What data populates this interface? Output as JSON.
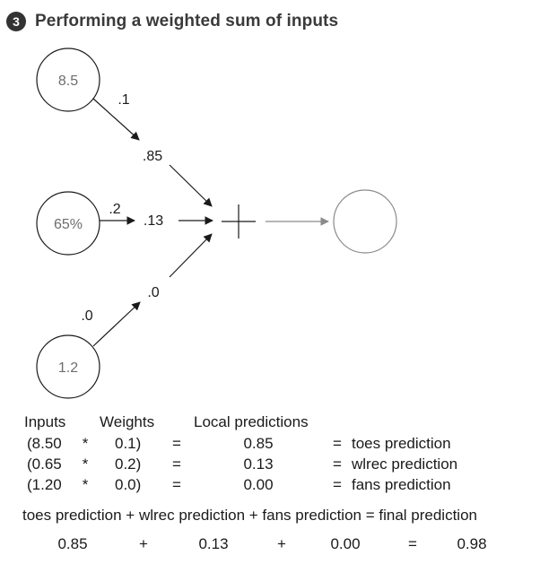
{
  "header": {
    "step_number": "3",
    "title": "Performing a weighted sum of inputs"
  },
  "diagram": {
    "inputs": [
      "8.5",
      "65%",
      "1.2"
    ],
    "weights": [
      ".1",
      ".2",
      ".0"
    ],
    "local_predictions": [
      ".85",
      ".13",
      ".0"
    ],
    "operator": "+"
  },
  "table": {
    "headers": {
      "inputs": "Inputs",
      "weights": "Weights",
      "local": "Local predictions"
    },
    "rows": [
      {
        "input": "(8.50",
        "times": "*",
        "weight": "0.1)",
        "eq": "=",
        "local": "0.85",
        "eq2": "=",
        "label": "toes prediction"
      },
      {
        "input": "(0.65",
        "times": "*",
        "weight": "0.2)",
        "eq": "=",
        "local": "0.13",
        "eq2": "=",
        "label": "wlrec prediction"
      },
      {
        "input": "(1.20",
        "times": "*",
        "weight": "0.0)",
        "eq": "=",
        "local": "0.00",
        "eq2": "=",
        "label": "fans prediction"
      }
    ]
  },
  "sum": {
    "equation": "toes prediction + wlrec prediction + fans prediction = final prediction",
    "values": {
      "v1": "0.85",
      "plus1": "+",
      "v2": "0.13",
      "plus2": "+",
      "v3": "0.00",
      "eq": "=",
      "result": "0.98"
    }
  }
}
